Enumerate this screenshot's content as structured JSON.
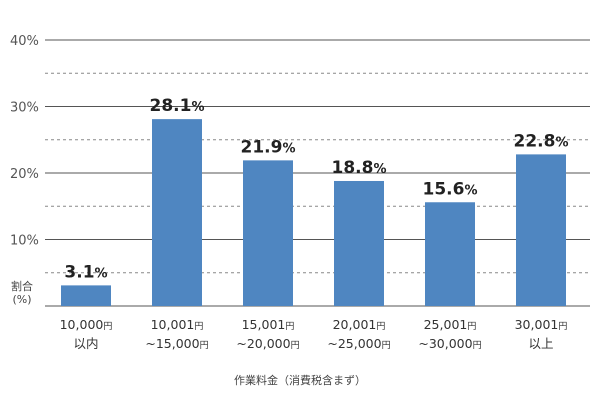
{
  "chart_data": {
    "type": "bar",
    "categories": [
      {
        "lines": [
          {
            "num": "10,000",
            "unit": "円"
          },
          {
            "num": "以内",
            "unit": ""
          }
        ]
      },
      {
        "lines": [
          {
            "num": "10,001",
            "unit": "円"
          },
          {
            "num": "~15,000",
            "unit": "円"
          }
        ]
      },
      {
        "lines": [
          {
            "num": "15,001",
            "unit": "円"
          },
          {
            "num": "~20,000",
            "unit": "円"
          }
        ]
      },
      {
        "lines": [
          {
            "num": "20,001",
            "unit": "円"
          },
          {
            "num": "~25,000",
            "unit": "円"
          }
        ]
      },
      {
        "lines": [
          {
            "num": "25,001",
            "unit": "円"
          },
          {
            "num": "~30,000",
            "unit": "円"
          }
        ]
      },
      {
        "lines": [
          {
            "num": "30,001",
            "unit": "円"
          },
          {
            "num": "以上",
            "unit": ""
          }
        ]
      }
    ],
    "values": [
      3.1,
      28.1,
      21.9,
      18.8,
      15.6,
      22.8
    ],
    "data_labels": [
      {
        "num": "3.1",
        "unit": "%"
      },
      {
        "num": "28.1",
        "unit": "%"
      },
      {
        "num": "21.9",
        "unit": "%"
      },
      {
        "num": "18.8",
        "unit": "%"
      },
      {
        "num": "15.6",
        "unit": "%"
      },
      {
        "num": "22.8",
        "unit": "%"
      }
    ],
    "y_ticks": [
      {
        "value": 10,
        "label": "10%"
      },
      {
        "value": 20,
        "label": "20%"
      },
      {
        "value": 30,
        "label": "30%"
      },
      {
        "value": 40,
        "label": "40%"
      }
    ],
    "ylim": [
      0,
      40
    ],
    "ylabel_lines": [
      "割合",
      "(%)"
    ],
    "xlabel": "作業料金（消費税含まず）",
    "grid": {
      "major_every": 10,
      "minor_every": 5
    },
    "colors": {
      "bar": "#4f86c1",
      "major_grid": "#555555",
      "minor_grid": "#888888"
    }
  }
}
